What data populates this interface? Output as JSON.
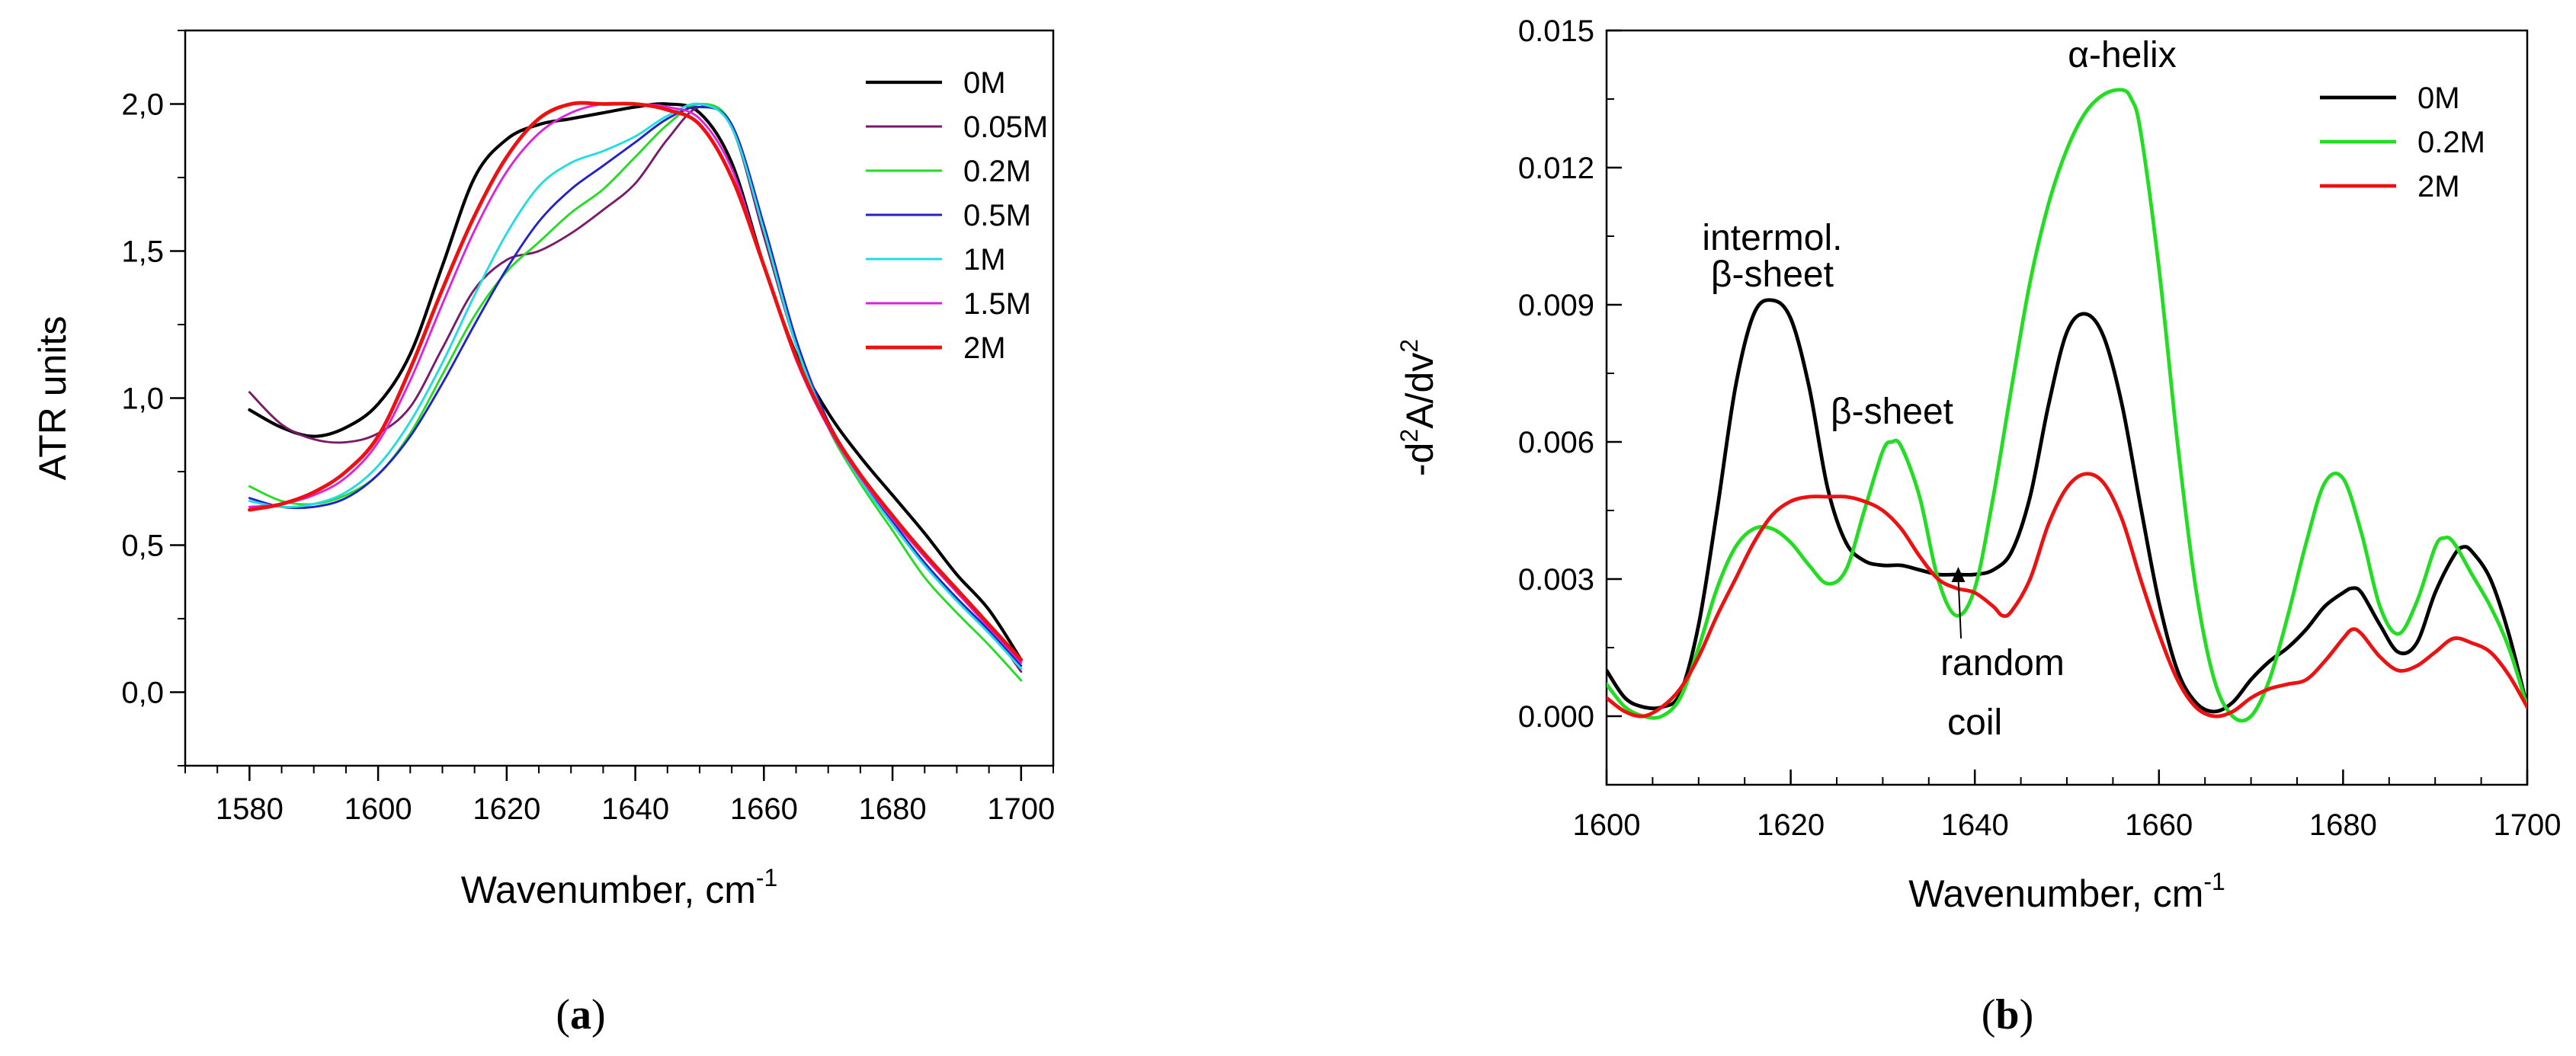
{
  "chart_data": [
    {
      "panel_label": "a",
      "type": "line",
      "xlabel": "Wavenumber, cm",
      "xlabel_sup": "-1",
      "ylabel": "ATR units",
      "xlim": [
        1570,
        1705
      ],
      "ylim": [
        -0.25,
        2.25
      ],
      "xticks": [
        1580,
        1600,
        1620,
        1640,
        1660,
        1680,
        1700
      ],
      "xtick_labels": [
        "1580",
        "1600",
        "1620",
        "1640",
        "1660",
        "1680",
        "1700"
      ],
      "yticks": [
        0.0,
        0.5,
        1.0,
        1.5,
        2.0
      ],
      "ytick_labels": [
        "0,0",
        "0,5",
        "1,0",
        "1,5",
        "2,0"
      ],
      "grid": false,
      "legend_position": "top-right",
      "series": [
        {
          "name": "0M",
          "color": "#000000",
          "width": 2.6,
          "x": [
            1580,
            1585,
            1590,
            1595,
            1600,
            1605,
            1610,
            1615,
            1620,
            1625,
            1630,
            1635,
            1640,
            1645,
            1650,
            1655,
            1660,
            1665,
            1670,
            1675,
            1680,
            1685,
            1690,
            1695,
            1700
          ],
          "y": [
            0.96,
            0.9,
            0.87,
            0.9,
            0.98,
            1.15,
            1.45,
            1.75,
            1.88,
            1.93,
            1.95,
            1.97,
            1.99,
            2.0,
            1.97,
            1.8,
            1.45,
            1.15,
            0.95,
            0.8,
            0.67,
            0.54,
            0.4,
            0.28,
            0.11
          ]
        },
        {
          "name": "0.05M",
          "color": "#7a1a6a",
          "width": 1.8,
          "x": [
            1580,
            1585,
            1590,
            1595,
            1600,
            1605,
            1610,
            1615,
            1620,
            1625,
            1630,
            1635,
            1640,
            1645,
            1650,
            1655,
            1660,
            1665,
            1670,
            1675,
            1680,
            1685,
            1690,
            1695,
            1700
          ],
          "y": [
            1.02,
            0.91,
            0.86,
            0.85,
            0.88,
            0.97,
            1.17,
            1.37,
            1.47,
            1.5,
            1.56,
            1.64,
            1.73,
            1.88,
            1.99,
            1.92,
            1.55,
            1.18,
            0.92,
            0.74,
            0.59,
            0.46,
            0.34,
            0.22,
            0.07
          ]
        },
        {
          "name": "0.2M",
          "color": "#22dd22",
          "width": 1.8,
          "x": [
            1580,
            1585,
            1590,
            1595,
            1600,
            1605,
            1610,
            1615,
            1620,
            1625,
            1630,
            1635,
            1640,
            1645,
            1650,
            1655,
            1660,
            1665,
            1670,
            1675,
            1680,
            1685,
            1690,
            1695,
            1700
          ],
          "y": [
            0.7,
            0.65,
            0.64,
            0.67,
            0.74,
            0.88,
            1.08,
            1.28,
            1.43,
            1.53,
            1.63,
            1.71,
            1.82,
            1.93,
            2.0,
            1.93,
            1.57,
            1.18,
            0.9,
            0.71,
            0.55,
            0.39,
            0.27,
            0.16,
            0.04
          ]
        },
        {
          "name": "0.5M",
          "color": "#2222cc",
          "width": 1.8,
          "x": [
            1580,
            1585,
            1590,
            1595,
            1600,
            1605,
            1610,
            1615,
            1620,
            1625,
            1630,
            1635,
            1640,
            1645,
            1650,
            1655,
            1660,
            1665,
            1670,
            1675,
            1680,
            1685,
            1690,
            1695,
            1700
          ],
          "y": [
            0.66,
            0.63,
            0.63,
            0.66,
            0.74,
            0.87,
            1.05,
            1.25,
            1.44,
            1.6,
            1.71,
            1.79,
            1.87,
            1.95,
            1.99,
            1.93,
            1.59,
            1.2,
            0.92,
            0.73,
            0.58,
            0.44,
            0.32,
            0.21,
            0.09
          ]
        },
        {
          "name": "1M",
          "color": "#22dddd",
          "width": 1.8,
          "x": [
            1580,
            1585,
            1590,
            1595,
            1600,
            1605,
            1610,
            1615,
            1620,
            1625,
            1630,
            1635,
            1640,
            1645,
            1650,
            1655,
            1660,
            1665,
            1670,
            1675,
            1680,
            1685,
            1690,
            1695,
            1700
          ],
          "y": [
            0.65,
            0.63,
            0.64,
            0.68,
            0.77,
            0.92,
            1.12,
            1.35,
            1.56,
            1.72,
            1.8,
            1.84,
            1.89,
            1.96,
            2.0,
            1.92,
            1.57,
            1.18,
            0.91,
            0.72,
            0.57,
            0.43,
            0.31,
            0.2,
            0.08
          ]
        },
        {
          "name": "1.5M",
          "color": "#dd22dd",
          "width": 1.8,
          "x": [
            1580,
            1585,
            1590,
            1595,
            1600,
            1605,
            1610,
            1615,
            1620,
            1625,
            1630,
            1635,
            1640,
            1645,
            1650,
            1655,
            1660,
            1665,
            1670,
            1675,
            1680,
            1685,
            1690,
            1695,
            1700
          ],
          "y": [
            0.63,
            0.64,
            0.67,
            0.73,
            0.85,
            1.06,
            1.32,
            1.57,
            1.77,
            1.9,
            1.97,
            2.0,
            2.0,
            1.99,
            1.95,
            1.78,
            1.45,
            1.13,
            0.9,
            0.73,
            0.59,
            0.46,
            0.34,
            0.22,
            0.1
          ]
        },
        {
          "name": "2M",
          "color": "#ee1111",
          "width": 3.0,
          "x": [
            1580,
            1585,
            1590,
            1595,
            1600,
            1605,
            1610,
            1615,
            1620,
            1625,
            1630,
            1635,
            1640,
            1645,
            1650,
            1655,
            1660,
            1665,
            1670,
            1675,
            1680,
            1685,
            1690,
            1695,
            1700
          ],
          "y": [
            0.62,
            0.64,
            0.68,
            0.75,
            0.87,
            1.1,
            1.37,
            1.62,
            1.82,
            1.95,
            2.0,
            2.0,
            2.0,
            1.98,
            1.93,
            1.75,
            1.45,
            1.14,
            0.91,
            0.74,
            0.6,
            0.47,
            0.35,
            0.23,
            0.11
          ]
        }
      ]
    },
    {
      "panel_label": "b",
      "type": "line",
      "xlabel": "Wavenumber, cm",
      "xlabel_sup": "-1",
      "ylabel_parts": [
        "-d",
        "2",
        "A/dv",
        "2"
      ],
      "xlim": [
        1600,
        1700
      ],
      "ylim": [
        -0.0015,
        0.015
      ],
      "xticks": [
        1600,
        1620,
        1640,
        1660,
        1680,
        1700
      ],
      "xtick_labels": [
        "1600",
        "1620",
        "1640",
        "1660",
        "1680",
        "1700"
      ],
      "yticks": [
        0.0,
        0.003,
        0.006,
        0.009,
        0.012,
        0.015
      ],
      "ytick_labels": [
        "0.000",
        "0.003",
        "0.006",
        "0.009",
        "0.012",
        "0.015"
      ],
      "grid": false,
      "legend_position": "top-right",
      "annotations": [
        {
          "text": "intermol.",
          "x": 1618,
          "y": 0.0102
        },
        {
          "text": "β-sheet",
          "x": 1618,
          "y": 0.0094
        },
        {
          "text": "β-sheet",
          "x": 1631,
          "y": 0.0064
        },
        {
          "text": "α-helix",
          "x": 1656,
          "y": 0.0142
        },
        {
          "text": "random",
          "x": 1643,
          "y": 0.0009
        },
        {
          "text": "coil",
          "x": 1640,
          "y": -0.0004
        }
      ],
      "arrow": {
        "from": [
          1638.5,
          0.0017
        ],
        "to": [
          1638.2,
          0.0032
        ]
      },
      "series": [
        {
          "name": "0M",
          "color": "#000000",
          "width": 3.0,
          "x": [
            1600,
            1602,
            1604,
            1606,
            1608,
            1610,
            1612,
            1614,
            1616,
            1618,
            1620,
            1622,
            1624,
            1626,
            1628,
            1630,
            1632,
            1634,
            1636,
            1638,
            1640,
            1642,
            1644,
            1646,
            1648,
            1650,
            1652,
            1654,
            1656,
            1658,
            1660,
            1662,
            1664,
            1666,
            1668,
            1670,
            1672,
            1674,
            1676,
            1678,
            1680,
            1681,
            1682,
            1684,
            1686,
            1688,
            1690,
            1692,
            1693,
            1694,
            1696,
            1698,
            1700
          ],
          "y": [
            0.001,
            0.0004,
            0.0002,
            0.0002,
            0.0005,
            0.002,
            0.0045,
            0.0072,
            0.0088,
            0.0091,
            0.0087,
            0.0072,
            0.005,
            0.0038,
            0.0034,
            0.0033,
            0.0033,
            0.0032,
            0.0031,
            0.0031,
            0.0031,
            0.0032,
            0.0036,
            0.0048,
            0.0068,
            0.0084,
            0.0088,
            0.0083,
            0.0068,
            0.0046,
            0.0025,
            0.001,
            0.0003,
            0.0001,
            0.0003,
            0.0008,
            0.0012,
            0.0015,
            0.0019,
            0.0024,
            0.0027,
            0.0028,
            0.0027,
            0.002,
            0.0014,
            0.0016,
            0.0027,
            0.0035,
            0.0037,
            0.0036,
            0.003,
            0.0018,
            0.0002
          ]
        },
        {
          "name": "0.2M",
          "color": "#22dd22",
          "width": 3.0,
          "x": [
            1600,
            1602,
            1604,
            1606,
            1608,
            1610,
            1612,
            1614,
            1616,
            1618,
            1620,
            1622,
            1624,
            1626,
            1628,
            1630,
            1631,
            1632,
            1634,
            1636,
            1638,
            1640,
            1642,
            1644,
            1646,
            1648,
            1650,
            1652,
            1654,
            1656,
            1657,
            1658,
            1660,
            1662,
            1664,
            1666,
            1668,
            1670,
            1672,
            1674,
            1676,
            1678,
            1680,
            1682,
            1684,
            1686,
            1688,
            1690,
            1691,
            1692,
            1694,
            1696,
            1698,
            1700
          ],
          "y": [
            0.0007,
            0.0002,
            0.0,
            0.0,
            0.0004,
            0.0015,
            0.0028,
            0.0037,
            0.0041,
            0.0041,
            0.0038,
            0.0033,
            0.0029,
            0.0032,
            0.0045,
            0.0058,
            0.006,
            0.0059,
            0.0048,
            0.003,
            0.0022,
            0.0028,
            0.0048,
            0.0072,
            0.0095,
            0.0112,
            0.0124,
            0.0132,
            0.0136,
            0.0137,
            0.0135,
            0.0128,
            0.0098,
            0.006,
            0.0028,
            0.0008,
            0.0,
            0.0,
            0.0008,
            0.0022,
            0.0038,
            0.0051,
            0.0052,
            0.004,
            0.0024,
            0.0018,
            0.0025,
            0.0037,
            0.0039,
            0.0038,
            0.0031,
            0.0024,
            0.0015,
            0.0002
          ]
        },
        {
          "name": "2M",
          "color": "#ee1111",
          "width": 3.0,
          "x": [
            1600,
            1602,
            1604,
            1606,
            1608,
            1610,
            1612,
            1614,
            1616,
            1618,
            1620,
            1622,
            1624,
            1626,
            1628,
            1630,
            1632,
            1634,
            1636,
            1638,
            1640,
            1642,
            1643,
            1644,
            1646,
            1648,
            1650,
            1652,
            1654,
            1656,
            1658,
            1660,
            1662,
            1664,
            1666,
            1668,
            1670,
            1672,
            1674,
            1676,
            1678,
            1680,
            1681,
            1682,
            1684,
            1686,
            1688,
            1690,
            1692,
            1694,
            1696,
            1698,
            1700
          ],
          "y": [
            0.0004,
            0.0001,
            0.0,
            0.0002,
            0.0006,
            0.0013,
            0.0022,
            0.003,
            0.0038,
            0.0044,
            0.0047,
            0.0048,
            0.0048,
            0.0048,
            0.0047,
            0.0045,
            0.0041,
            0.0035,
            0.003,
            0.0028,
            0.0027,
            0.0024,
            0.0022,
            0.0023,
            0.003,
            0.0042,
            0.005,
            0.0053,
            0.0051,
            0.0043,
            0.003,
            0.0018,
            0.0008,
            0.0002,
            0.0,
            0.0001,
            0.0004,
            0.0006,
            0.0007,
            0.0008,
            0.0012,
            0.0017,
            0.0019,
            0.0018,
            0.0013,
            0.001,
            0.0011,
            0.0014,
            0.0017,
            0.0016,
            0.0014,
            0.0009,
            0.0002
          ]
        }
      ]
    }
  ]
}
